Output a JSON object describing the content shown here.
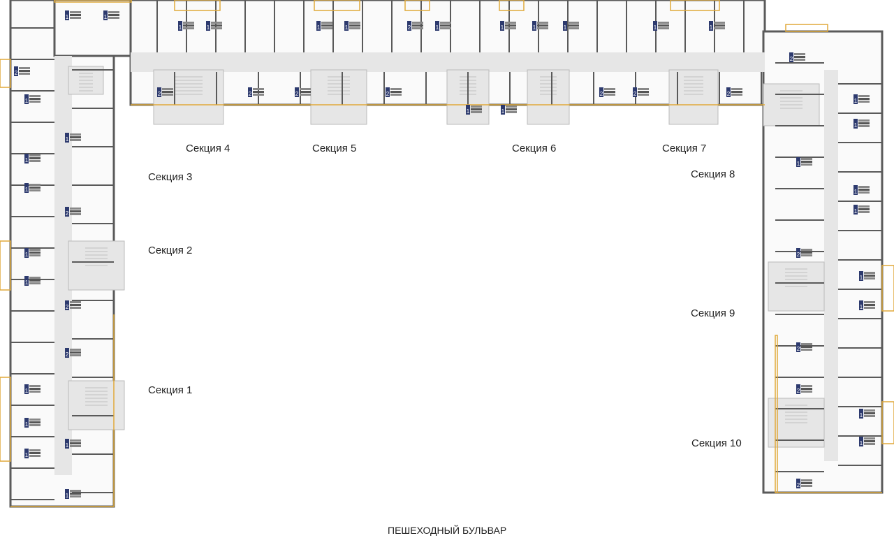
{
  "sections": [
    "Секция 1",
    "Секция 2",
    "Секция 3",
    "Секция 4",
    "Секция 5",
    "Секция 6",
    "Секция 7",
    "Секция 8",
    "Секция 9",
    "Секция 10"
  ],
  "street_label": "ПЕШЕХОДНЫЙ БУЛЬВАР",
  "apartment_rooms": [
    1,
    1,
    2,
    1,
    1,
    1,
    1,
    2,
    1,
    1,
    2,
    2,
    1,
    1,
    1,
    1,
    1,
    1,
    1,
    2,
    2,
    1,
    1,
    2,
    2,
    2,
    1,
    1,
    1,
    1,
    1,
    1,
    2,
    1,
    1,
    2,
    2,
    2,
    1,
    1,
    1,
    1,
    1,
    2,
    1,
    1,
    2,
    2,
    1,
    1,
    2
  ],
  "colors": {
    "wall": "#5a5a5a",
    "balcony": "#e0a93a",
    "core": "#e6e6e6",
    "badge": "#2d3a6e",
    "text": "#222222"
  }
}
